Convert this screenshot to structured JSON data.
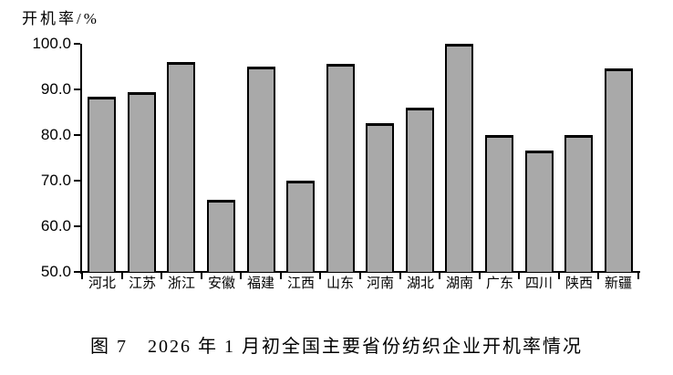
{
  "caption": "图 7　2026 年 1 月初全国主要省份纺织企业开机率情况",
  "chart_data": {
    "type": "bar",
    "title": "图 7　2026 年 1 月初全国主要省份纺织企业开机率情况",
    "ylabel": "开机率/%",
    "xlabel": "",
    "categories": [
      "河北",
      "江苏",
      "浙江",
      "安徽",
      "福建",
      "江西",
      "山东",
      "河南",
      "湖北",
      "湖南",
      "广东",
      "四川",
      "陕西",
      "新疆"
    ],
    "values": [
      88.5,
      89.5,
      96.0,
      65.8,
      95.0,
      70.0,
      95.6,
      82.7,
      86.0,
      99.9,
      80.0,
      76.7,
      80.0,
      94.7
    ],
    "ylim": [
      50.0,
      100.0
    ],
    "yticks": [
      50,
      60,
      70,
      80,
      90,
      100
    ],
    "ytick_labels": [
      "50.0",
      "60.0",
      "70.0",
      "80.0",
      "90.0",
      "100.0"
    ],
    "grid": false,
    "legend": "none",
    "bar_fill_color": "#a9a9a9",
    "bar_border_color": "#000000",
    "axis_color": "#000000",
    "background_color": "#ffffff"
  }
}
